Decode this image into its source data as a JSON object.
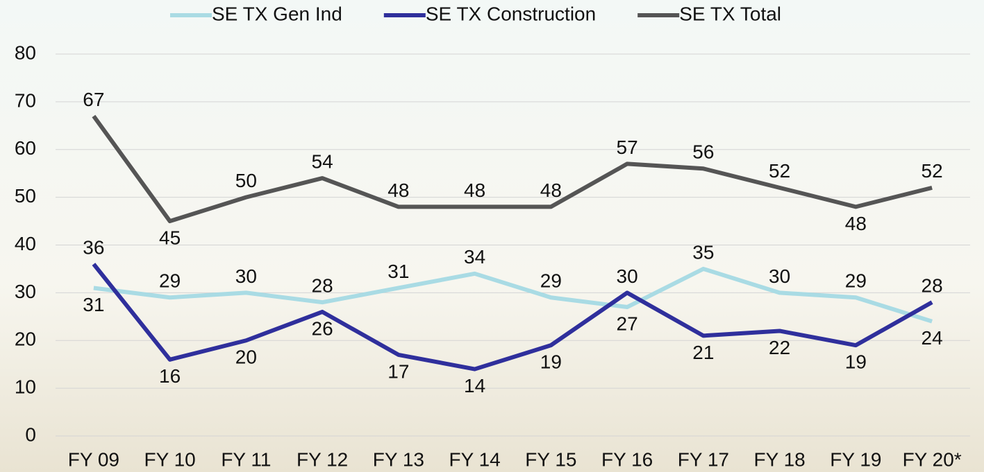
{
  "chart_data": {
    "type": "line",
    "categories": [
      "FY 09",
      "FY 10",
      "FY 11",
      "FY 12",
      "FY 13",
      "FY 14",
      "FY 15",
      "FY 16",
      "FY 17",
      "FY 18",
      "FY 19",
      "FY 20*"
    ],
    "series": [
      {
        "name": "SE TX Gen Ind",
        "color": "#a9dbe4",
        "values": [
          31,
          29,
          30,
          28,
          31,
          34,
          29,
          27,
          35,
          30,
          29,
          24
        ]
      },
      {
        "name": "SE TX Construction",
        "color": "#2f2f9c",
        "values": [
          36,
          16,
          20,
          26,
          17,
          14,
          19,
          30,
          21,
          22,
          19,
          28
        ]
      },
      {
        "name": "SE TX Total",
        "color": "#555555",
        "values": [
          67,
          45,
          50,
          54,
          48,
          48,
          48,
          57,
          56,
          52,
          48,
          52
        ]
      }
    ],
    "ylim": [
      0,
      80
    ],
    "yticks": [
      0,
      10,
      20,
      30,
      40,
      50,
      60,
      70,
      80
    ],
    "grid": true,
    "legend": "top"
  }
}
